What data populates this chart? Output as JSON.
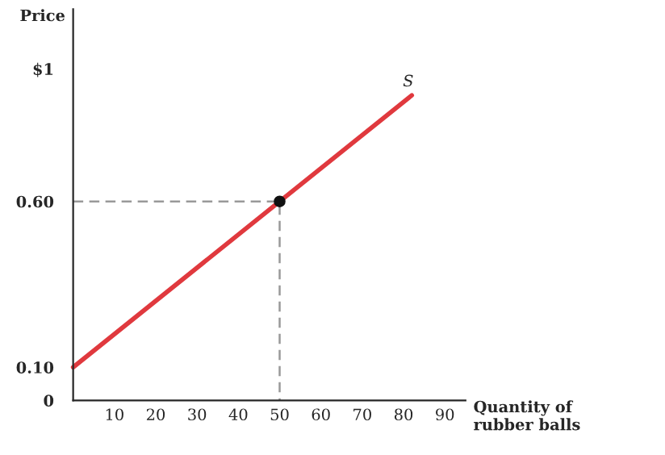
{
  "chart_data": {
    "type": "line",
    "xlabel": "Quantity of\nrubber balls",
    "ylabel": "Price",
    "xlim": [
      0,
      95
    ],
    "ylim": [
      0,
      1.18
    ],
    "xticks": [
      10,
      20,
      30,
      40,
      50,
      60,
      70,
      80,
      90
    ],
    "yticks": [
      {
        "value": 0,
        "label": "0"
      },
      {
        "value": 0.1,
        "label": "0.10"
      },
      {
        "value": 0.6,
        "label": "0.60"
      },
      {
        "value": 1,
        "label": "$1"
      }
    ],
    "series": [
      {
        "x": [
          0,
          82
        ],
        "values": [
          0.1,
          0.92
        ],
        "color": "#e0393e",
        "line_style": "solid"
      },
      {
        "type": "line",
        "x": [
          0,
          50,
          50
        ],
        "values": [
          0.6,
          0.6,
          0
        ],
        "color": "#999999",
        "line_style": "dashed"
      },
      {
        "type": "scatter",
        "x": [
          50
        ],
        "values": [
          0.6
        ],
        "color": "#111111",
        "marker": "circle"
      }
    ],
    "annotations": [
      {
        "text": "S",
        "x": 82,
        "y": 0.92
      }
    ],
    "grid": false,
    "legend": false
  }
}
